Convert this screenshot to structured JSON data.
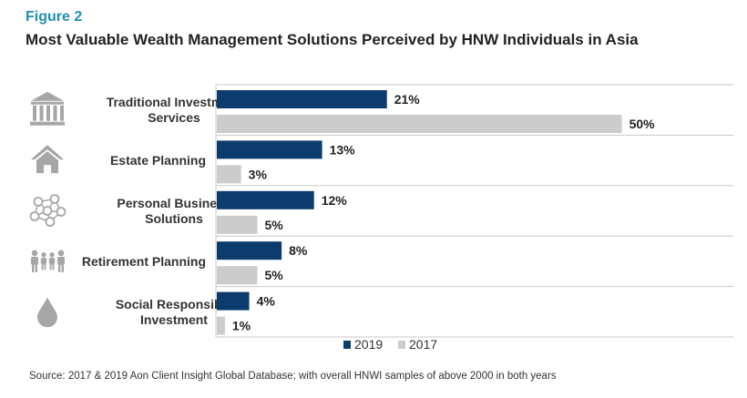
{
  "header": {
    "figure_label": "Figure 2",
    "title": "Most Valuable Wealth Management Solutions Perceived by HNW Individuals in Asia"
  },
  "source": "Source: 2017 & 2019 Aon Client Insight Global Database; with overall HNWI samples of above 2000 in both years",
  "colors": {
    "series_2019": "#0c3b6e",
    "series_2017": "#cccccc",
    "separator": "#c8c8c8"
  },
  "chart_data": {
    "type": "bar",
    "orientation": "horizontal",
    "categories": [
      {
        "lines": [
          "Traditional Investment",
          "Services"
        ],
        "icon": "bank-icon"
      },
      {
        "lines": [
          "Estate Planning"
        ],
        "icon": "house-icon"
      },
      {
        "lines": [
          "Personal Business",
          "Solutions"
        ],
        "icon": "network-icon"
      },
      {
        "lines": [
          "Retirement Planning"
        ],
        "icon": "family-icon"
      },
      {
        "lines": [
          "Social Responsible",
          "Investment"
        ],
        "icon": "water-drop-icon"
      }
    ],
    "series": [
      {
        "name": "2019",
        "values": [
          21,
          13,
          12,
          8,
          4
        ],
        "labels": [
          "21%",
          "13%",
          "12%",
          "8%",
          "4%"
        ]
      },
      {
        "name": "2017",
        "values": [
          50,
          3,
          5,
          5,
          1
        ],
        "labels": [
          "50%",
          "3%",
          "5%",
          "5%",
          "1%"
        ]
      }
    ],
    "xlim": [
      0,
      65
    ],
    "legend_position": "bottom"
  }
}
